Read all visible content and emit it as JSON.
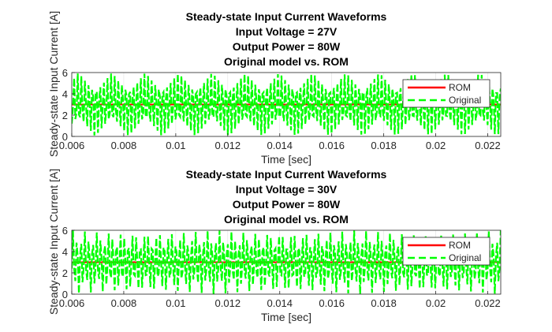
{
  "chart_data": [
    {
      "type": "line",
      "title": [
        "Steady-state Input Current Waveforms",
        "Input Voltage = 27V",
        "Output Power = 80W",
        "Original model vs. ROM"
      ],
      "xlabel": "Time [sec]",
      "ylabel": "Steady-state Input Current [A]",
      "xlim": [
        0.006,
        0.0225
      ],
      "ylim": [
        0,
        6
      ],
      "xticks": [
        "0.006",
        "0.008",
        "0.01",
        "0.012",
        "0.014",
        "0.016",
        "0.018",
        "0.02",
        "0.022"
      ],
      "yticks": [
        "0",
        "2",
        "4",
        "6"
      ],
      "grid": true,
      "legend_position": "right",
      "series": [
        {
          "name": "ROM",
          "color": "#ff0000",
          "style": "solid",
          "mean": 3.0,
          "ripple": 3.0,
          "switching_frequency_hz": 50000
        },
        {
          "name": "Original",
          "color": "#00ff00",
          "style": "dashed",
          "mean": 3.0,
          "ripple": 3.0,
          "switching_frequency_hz": 50000
        }
      ]
    },
    {
      "type": "line",
      "title": [
        "Steady-state Input Current Waveforms",
        "Input Voltage = 30V",
        "Output Power = 80W",
        "Original model vs. ROM"
      ],
      "xlabel": "Time [sec]",
      "ylabel": "Steady-state Input Current [A]",
      "xlim": [
        0.006,
        0.0225
      ],
      "ylim": [
        0,
        6
      ],
      "xticks": [
        "0.006",
        "0.008",
        "0.01",
        "0.012",
        "0.014",
        "0.016",
        "0.018",
        "0.02",
        "0.022"
      ],
      "yticks": [
        "0",
        "2",
        "4",
        "6"
      ],
      "grid": true,
      "legend_position": "right",
      "series": [
        {
          "name": "ROM",
          "color": "#ff0000",
          "style": "solid",
          "mean": 3.0,
          "ripple": 3.0,
          "switching_frequency_hz": 50000
        },
        {
          "name": "Original",
          "color": "#00ff00",
          "style": "dashed",
          "mean": 3.0,
          "ripple": 3.0,
          "switching_frequency_hz": 50000
        }
      ]
    }
  ]
}
